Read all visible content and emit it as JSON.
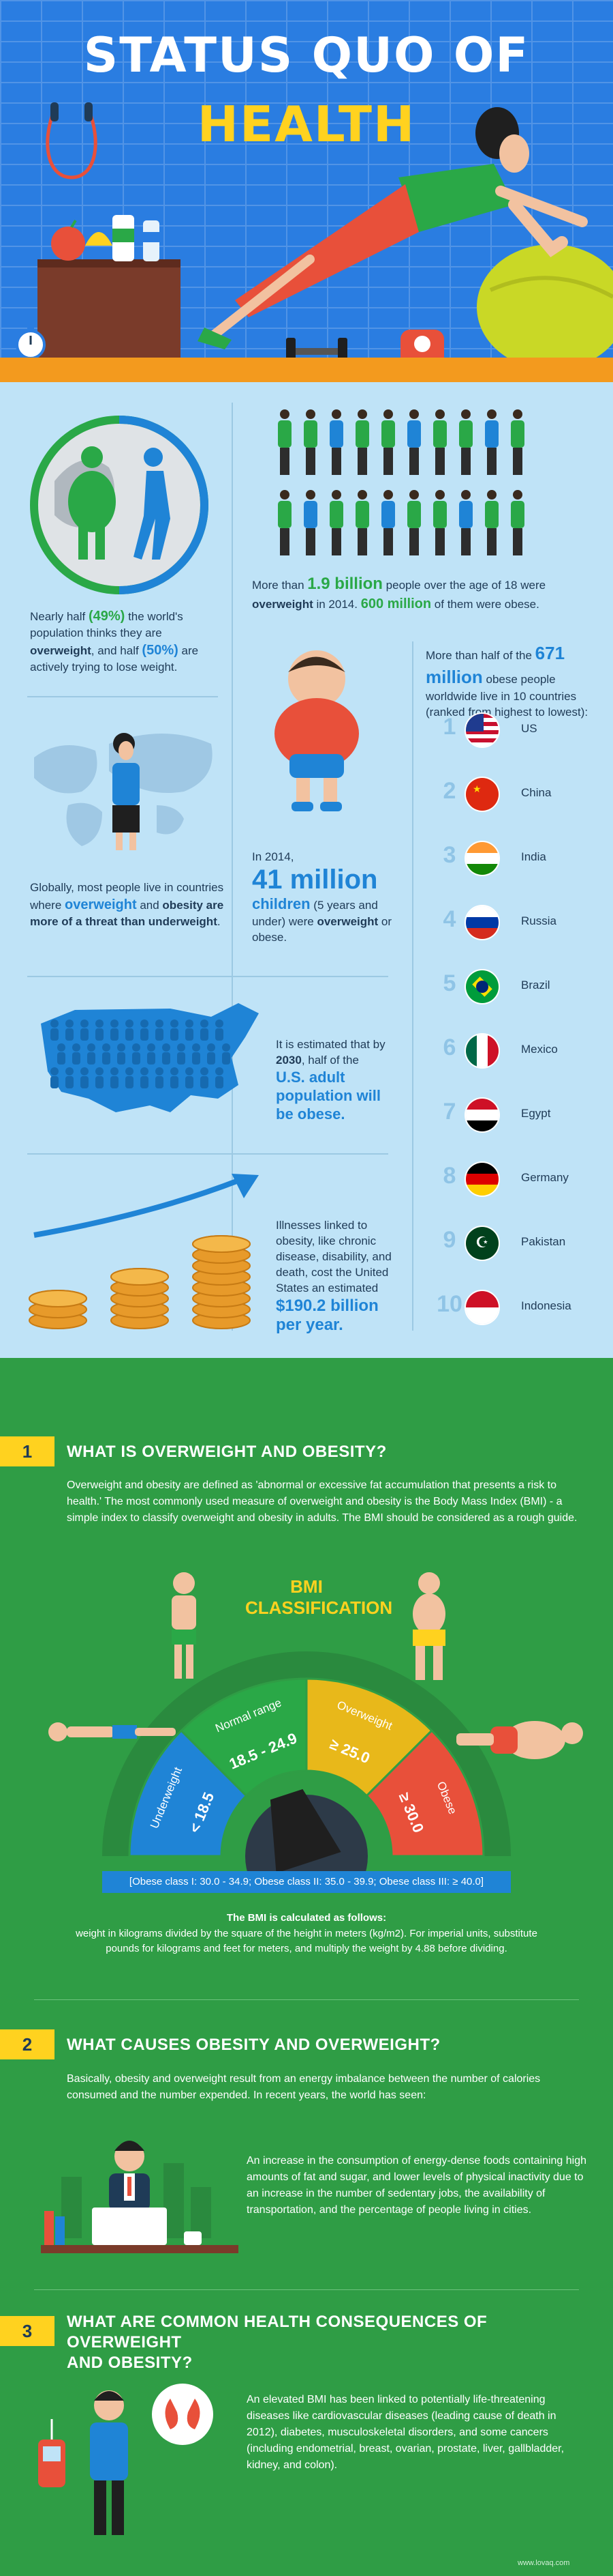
{
  "header": {
    "title_line1": "STATUS QUO OF",
    "title_line2": "HEALTH"
  },
  "stats": {
    "overweight_world": {
      "prefix": "More than ",
      "value": "1.9 billion",
      "mid": " people over the age of 18 were ",
      "bold": "overweight",
      "mid2": " in 2014. ",
      "value2": "600 million",
      "suffix": " of them were obese."
    },
    "half_think": {
      "p1": "Nearly half ",
      "v1": "(49%)",
      "p2": " the world's population thinks they are ",
      "b1": "overweight",
      "p3": ", and half ",
      "v2": "(50%)",
      "p4": " are actively trying to lose weight."
    },
    "top10": {
      "p1": "More than half of the ",
      "value": "671 million",
      "p2": " obese people worldwide live in 10 countries (ranked from highest to lowest):",
      "countries": [
        {
          "rank": "1",
          "name": "US"
        },
        {
          "rank": "2",
          "name": "China"
        },
        {
          "rank": "3",
          "name": "India"
        },
        {
          "rank": "4",
          "name": "Russia"
        },
        {
          "rank": "5",
          "name": "Brazil"
        },
        {
          "rank": "6",
          "name": "Mexico"
        },
        {
          "rank": "7",
          "name": "Egypt"
        },
        {
          "rank": "8",
          "name": "Germany"
        },
        {
          "rank": "9",
          "name": "Pakistan"
        },
        {
          "rank": "10",
          "name": "Indonesia"
        }
      ]
    },
    "globally": {
      "p1": "Globally, most people live in countries where ",
      "v1": "overweight",
      "p2": " and ",
      "b1": "obesity are more of a threat than underweight",
      "p3": "."
    },
    "children": {
      "p1": "In 2014,",
      "value": "41 million",
      "v2": "children",
      "p2": " (5 years and under) were ",
      "b1": "overweight",
      "p3": " or obese."
    },
    "us_adults": {
      "p1": "It is estimated that by ",
      "b1": "2030",
      "p2": ", half of the",
      "v1": "U.S. adult population will be obese."
    },
    "cost": {
      "p1": "Illnesses linked to obesity, like chronic disease, disability, and death, cost the United States an estimated",
      "value": "$190.2 billion per year."
    }
  },
  "sections": [
    {
      "num": "1",
      "title": "WHAT IS OVERWEIGHT AND OBESITY?",
      "body": "Overweight and obesity are defined as 'abnormal or excessive fat accumulation that presents a risk to health.' The most commonly used measure of overweight and obesity is the Body Mass Index (BMI) - a simple index to classify overweight and obesity in adults. The BMI should be considered as a rough guide."
    },
    {
      "num": "2",
      "title": "WHAT CAUSES OBESITY AND OVERWEIGHT?",
      "body": "Basically, obesity and overweight result from an energy imbalance between the number of calories consumed and the number expended. In recent years, the world has seen:",
      "detail": "An increase in the consumption of energy-dense foods containing high amounts of fat and sugar, and lower levels of physical inactivity due to an increase in the number of sedentary jobs, the availability of transportation, and the percentage of people living in cities."
    },
    {
      "num": "3",
      "title_line1": "WHAT ARE COMMON HEALTH CONSEQUENCES OF OVERWEIGHT",
      "title_line2": "AND OBESITY?",
      "detail": "An elevated BMI has been linked to potentially life-threatening diseases like cardiovascular diseases (leading cause of death in 2012), diabetes, musculoskeletal disorders, and some cancers (including endometrial, breast, ovarian, prostate, liver, gallbladder, kidney, and colon)."
    }
  ],
  "bmi": {
    "title_line1": "BMI",
    "title_line2": "CLASSIFICATION",
    "segments": [
      {
        "label": "Underweight",
        "range": "< 18.5"
      },
      {
        "label": "Normal range",
        "range": "18.5 - 24.9"
      },
      {
        "label": "Overweight",
        "range": "≥ 25.0"
      },
      {
        "label": "Obese",
        "range": "≥ 30.0"
      }
    ],
    "obese_classes": "[Obese class I: 30.0 - 34.9; Obese class II: 35.0 - 39.9; Obese class III: ≥ 40.0]",
    "calc_title": "The BMI is calculated as follows:",
    "calc_body": "weight in kilograms divided by the square of the height in meters (kg/m2). For imperial units, substitute pounds for kilograms and feet for meters, and multiply the weight by 4.88 before dividing."
  },
  "footer": {
    "credit": "www.lovaq.com"
  },
  "colors": {
    "hero_bg": "#2a7de1",
    "stats_bg": "#bfe3f7",
    "green_bg": "#2f9d45",
    "accent_yellow": "#ffd21f",
    "accent_blue": "#1f84d6",
    "accent_green": "#2aa847"
  }
}
